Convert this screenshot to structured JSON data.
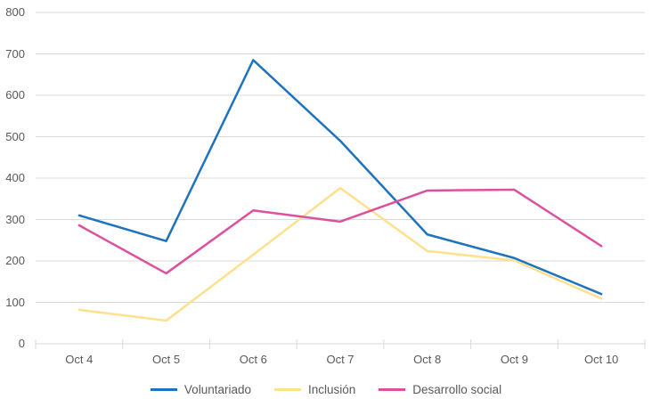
{
  "chart_data": {
    "type": "line",
    "categories": [
      "Oct 4",
      "Oct 5",
      "Oct 6",
      "Oct 7",
      "Oct 8",
      "Oct 9",
      "Oct 10"
    ],
    "series": [
      {
        "name": "Voluntariado",
        "color": "#1E73BE",
        "values": [
          310,
          248,
          685,
          490,
          264,
          207,
          120
        ]
      },
      {
        "name": "Inclusión",
        "color": "#FFE08C",
        "values": [
          82,
          56,
          215,
          376,
          224,
          201,
          109
        ]
      },
      {
        "name": "Desarrollo social",
        "color": "#DB519E",
        "values": [
          286,
          170,
          322,
          295,
          370,
          372,
          236
        ]
      }
    ],
    "ylim": [
      0,
      800
    ],
    "y_ticks": [
      0,
      100,
      200,
      300,
      400,
      500,
      600,
      700,
      800
    ],
    "grid": true,
    "legend_position": "bottom",
    "axis_text_color": "#595959",
    "grid_color": "#D9D9D9",
    "background": "#FFFFFF"
  }
}
